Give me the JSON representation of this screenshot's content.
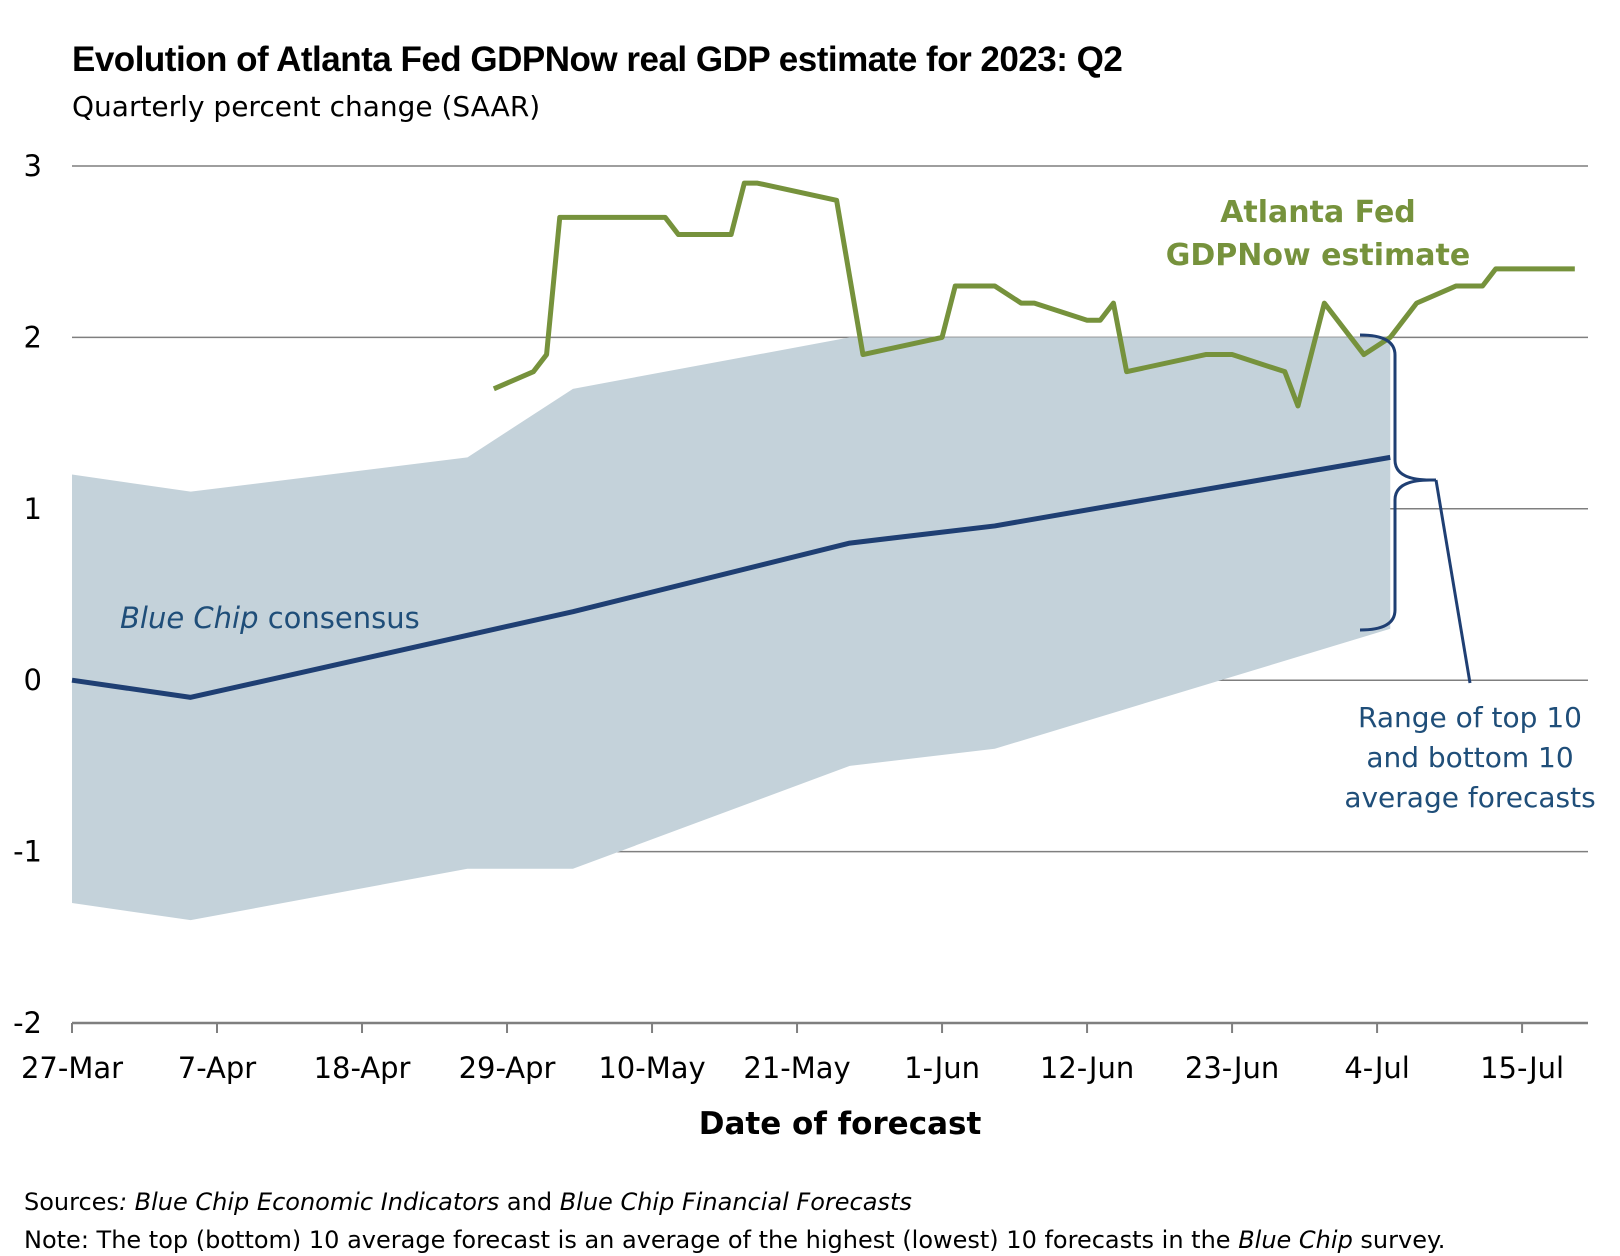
{
  "title": "Evolution of Atlanta Fed GDPNow real GDP estimate for 2023: Q2",
  "subtitle": "Quarterly percent change (SAAR)",
  "sources": {
    "label": "Sources",
    "colon": ":",
    "source1": "Blue Chip Economic Indicators",
    "and": " and ",
    "source2": "Blue Chip Financial Forecasts"
  },
  "note": {
    "label": "Note:",
    "text_before": " The top (bottom) 10 average forecast is an average of the highest (lowest) 10 forecasts in the ",
    "italic": "Blue Chip",
    "text_after": " survey."
  },
  "colors": {
    "gdpnow": "#76923c",
    "consensus": "#1f3f73",
    "band": "#c4d2da",
    "annotation_text": "#1f4e79",
    "grid": "#7f7f7f"
  },
  "chart_data": {
    "type": "line",
    "title": "Evolution of Atlanta Fed GDPNow real GDP estimate for 2023: Q2",
    "subtitle": "Quarterly percent change (SAAR)",
    "xlabel": "Date of forecast",
    "ylabel": "",
    "x_ticks": [
      "27-Mar",
      "7-Apr",
      "18-Apr",
      "29-Apr",
      "10-May",
      "21-May",
      "1-Jun",
      "12-Jun",
      "23-Jun",
      "4-Jul",
      "15-Jul"
    ],
    "y_ticks": [
      "-2",
      "-1",
      "0",
      "1",
      "2",
      "3"
    ],
    "ylim": [
      -2,
      3
    ],
    "xlim": [
      "27-Mar",
      "20-Jul"
    ],
    "grid": "horizontal",
    "annotations": {
      "gdpnow_line1": "Atlanta Fed",
      "gdpnow_line2": "GDPNow estimate",
      "consensus_italic": "Blue Chip",
      "consensus_rest": " consensus",
      "range_line1": "Range of top 10",
      "range_line2": "and bottom 10",
      "range_line3": "average forecasts"
    },
    "series": [
      {
        "name": "Atlanta Fed GDPNow estimate",
        "style": "line",
        "points": [
          [
            "2023-04-28",
            1.7
          ],
          [
            "2023-05-01",
            1.8
          ],
          [
            "2023-05-02",
            1.9
          ],
          [
            "2023-05-03",
            2.7
          ],
          [
            "2023-05-08",
            2.7
          ],
          [
            "2023-05-11",
            2.7
          ],
          [
            "2023-05-12",
            2.6
          ],
          [
            "2023-05-16",
            2.6
          ],
          [
            "2023-05-17",
            2.9
          ],
          [
            "2023-05-18",
            2.9
          ],
          [
            "2023-05-24",
            2.8
          ],
          [
            "2023-05-26",
            1.9
          ],
          [
            "2023-06-01",
            2.0
          ],
          [
            "2023-06-02",
            2.3
          ],
          [
            "2023-06-05",
            2.3
          ],
          [
            "2023-06-07",
            2.2
          ],
          [
            "2023-06-08",
            2.2
          ],
          [
            "2023-06-12",
            2.1
          ],
          [
            "2023-06-13",
            2.1
          ],
          [
            "2023-06-14",
            2.2
          ],
          [
            "2023-06-15",
            1.8
          ],
          [
            "2023-06-21",
            1.9
          ],
          [
            "2023-06-23",
            1.9
          ],
          [
            "2023-06-27",
            1.8
          ],
          [
            "2023-06-28",
            1.6
          ],
          [
            "2023-06-30",
            2.2
          ],
          [
            "2023-07-03",
            1.9
          ],
          [
            "2023-07-05",
            2.0
          ],
          [
            "2023-07-07",
            2.2
          ],
          [
            "2023-07-10",
            2.3
          ],
          [
            "2023-07-12",
            2.3
          ],
          [
            "2023-07-13",
            2.4
          ],
          [
            "2023-07-19",
            2.4
          ]
        ]
      },
      {
        "name": "Blue Chip consensus",
        "style": "line",
        "points": [
          [
            "2023-03-27",
            0.0
          ],
          [
            "2023-04-05",
            -0.1
          ],
          [
            "2023-05-04",
            0.4
          ],
          [
            "2023-05-25",
            0.8
          ],
          [
            "2023-06-05",
            0.9
          ],
          [
            "2023-07-05",
            1.3
          ]
        ]
      },
      {
        "name": "Range of top 10 and bottom 10 average forecasts",
        "style": "band",
        "points": [
          [
            "2023-03-27",
            -1.3,
            1.2
          ],
          [
            "2023-04-05",
            -1.4,
            1.1
          ],
          [
            "2023-04-26",
            -1.1,
            1.3
          ],
          [
            "2023-05-04",
            -1.1,
            1.7
          ],
          [
            "2023-05-25",
            -0.5,
            2.0
          ],
          [
            "2023-06-05",
            -0.4,
            2.0
          ],
          [
            "2023-07-05",
            0.3,
            2.0
          ]
        ]
      }
    ]
  }
}
